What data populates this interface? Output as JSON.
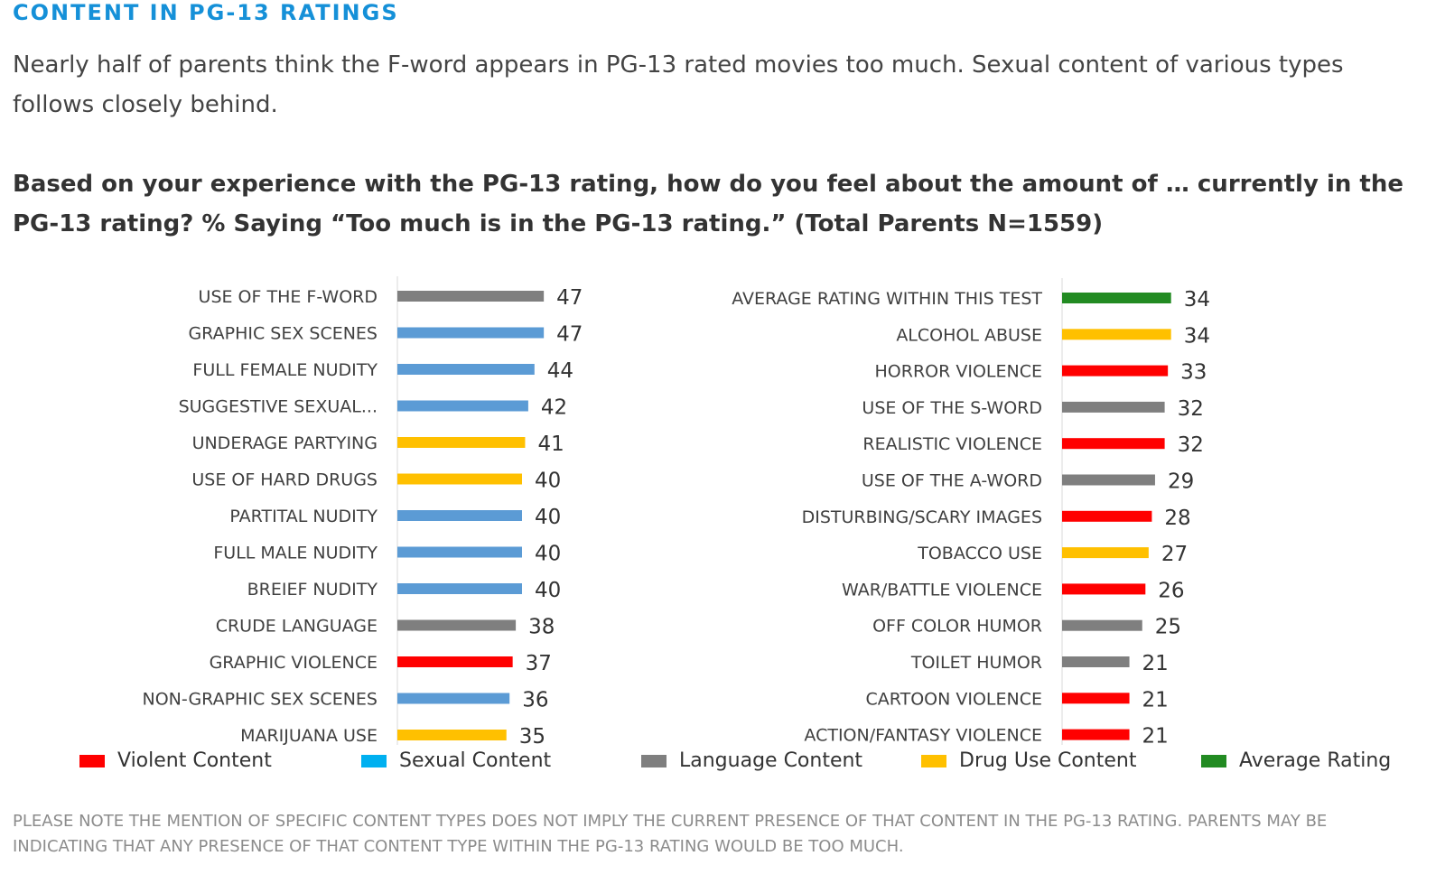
{
  "header": {
    "section_title": "CONTENT IN PG-13 RATINGS",
    "intro": "Nearly half of parents think the F-word appears in PG-13 rated movies too much. Sexual content of various types follows closely behind.",
    "question": "Based on your experience with the PG-13 rating, how do you feel about the amount of … currently in the PG-13 rating? % Saying “Too much is in the PG-13 rating.” (Total Parents N=1559)"
  },
  "colors": {
    "violent": "#ff0000",
    "sexual": "#5b9bd5",
    "language": "#7f7f7f",
    "drug": "#ffc000",
    "average": "#228b22",
    "legend_sexual": "#00b0f0"
  },
  "legend": [
    {
      "label": "Violent Content",
      "color": "#ff0000"
    },
    {
      "label": "Sexual Content",
      "color": "#00b0f0"
    },
    {
      "label": "Language Content",
      "color": "#7f7f7f"
    },
    {
      "label": "Drug Use Content",
      "color": "#ffc000"
    },
    {
      "label": "Average Rating",
      "color": "#228b22"
    }
  ],
  "chart_data": [
    {
      "type": "bar",
      "orientation": "horizontal",
      "categories": [
        "USE OF THE F-WORD",
        "GRAPHIC SEX SCENES",
        "FULL FEMALE NUDITY",
        "SUGGESTIVE SEXUAL...",
        "UNDERAGE PARTYING",
        "USE OF HARD DRUGS",
        "PARTITAL NUDITY",
        "FULL MALE NUDITY",
        "BREIEF NUDITY",
        "CRUDE LANGUAGE",
        "GRAPHIC VIOLENCE",
        "NON-GRAPHIC SEX SCENES",
        "MARIJUANA USE"
      ],
      "values": [
        47,
        47,
        44,
        42,
        41,
        40,
        40,
        40,
        40,
        38,
        37,
        36,
        35
      ],
      "groups": [
        "language",
        "sexual",
        "sexual",
        "sexual",
        "drug",
        "drug",
        "sexual",
        "sexual",
        "sexual",
        "language",
        "violent",
        "sexual",
        "drug"
      ],
      "data_labels": true
    },
    {
      "type": "bar",
      "orientation": "horizontal",
      "categories": [
        "AVERAGE RATING WITHIN THIS TEST",
        "ALCOHOL ABUSE",
        "HORROR VIOLENCE",
        "USE OF THE S-WORD",
        "REALISTIC VIOLENCE",
        "USE OF THE A-WORD",
        "DISTURBING/SCARY IMAGES",
        "TOBACCO USE",
        "WAR/BATTLE VIOLENCE",
        "OFF COLOR HUMOR",
        "TOILET HUMOR",
        "CARTOON VIOLENCE",
        "ACTION/FANTASY VIOLENCE"
      ],
      "values": [
        34,
        34,
        33,
        32,
        32,
        29,
        28,
        27,
        26,
        25,
        21,
        21,
        21
      ],
      "groups": [
        "average",
        "drug",
        "violent",
        "language",
        "violent",
        "language",
        "violent",
        "drug",
        "violent",
        "language",
        "language",
        "violent",
        "violent"
      ],
      "data_labels": true
    }
  ],
  "footnote": "PLEASE NOTE THE MENTION OF SPECIFIC CONTENT TYPES DOES NOT IMPLY THE CURRENT PRESENCE OF THAT CONTENT IN THE PG-13 RATING.  PARENTS MAY BE INDICATING THAT ANY PRESENCE OF THAT CONTENT TYPE WITHIN THE PG-13 RATING WOULD BE TOO MUCH."
}
